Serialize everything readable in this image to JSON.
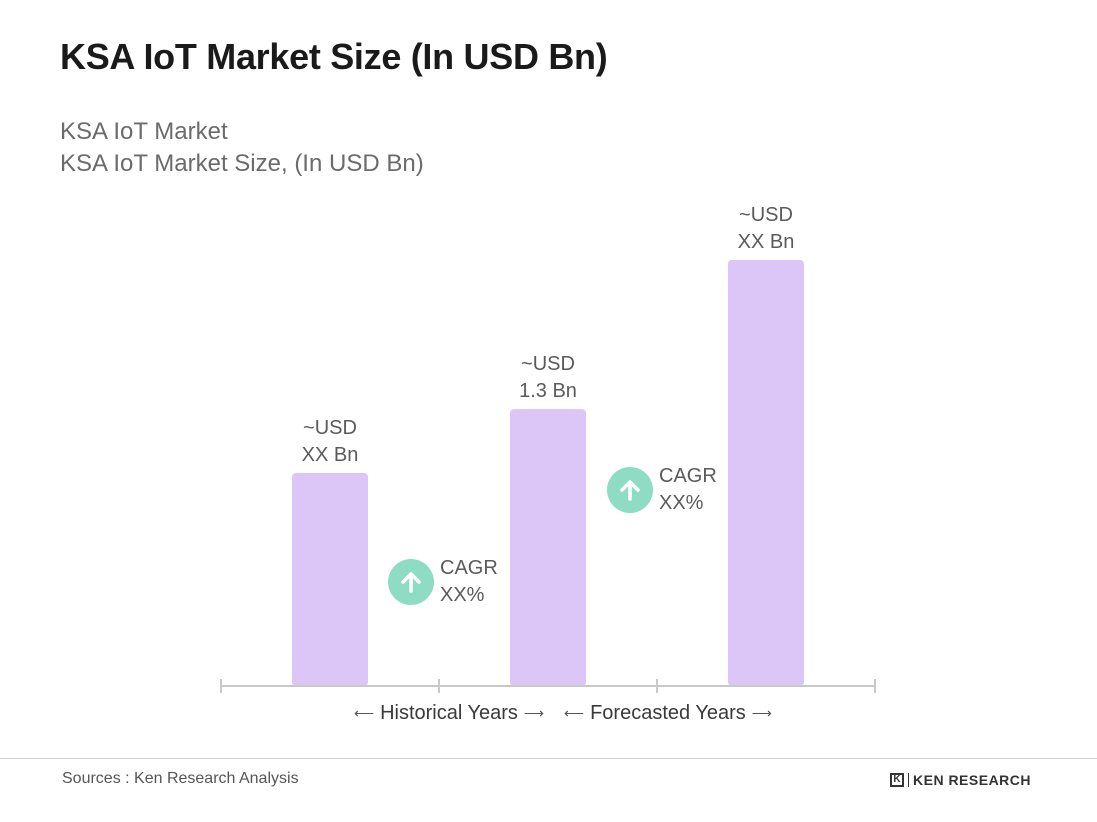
{
  "header": {
    "title": "KSA IoT Market Size (In USD Bn)",
    "subtitle_1": "KSA IoT Market",
    "subtitle_2": "KSA IoT Market Size, (In USD Bn)"
  },
  "chart_data": {
    "type": "bar",
    "title": "KSA IoT Market Size (In USD Bn)",
    "categories": [
      "",
      "",
      ""
    ],
    "values": [
      1.0,
      1.3,
      2.0
    ],
    "bar_labels": [
      [
        "~USD",
        "XX Bn"
      ],
      [
        "~USD",
        "1.3 Bn"
      ],
      [
        "~USD",
        "XX Bn"
      ]
    ],
    "bar_color": "#dcc5f7",
    "ylim": [
      0,
      2.0
    ],
    "grid": false,
    "cagr": [
      {
        "line1": "CAGR",
        "line2": "XX%"
      },
      {
        "line1": "CAGR",
        "line2": "XX%"
      }
    ],
    "periods": {
      "historical": "Historical Years",
      "forecasted": "Forecasted Years"
    },
    "cagr_color": "#8fdcc4",
    "axis_color": "#c8c8c8"
  },
  "footer": {
    "source": "Sources : Ken Research Analysis",
    "brand": "KEN RESEARCH",
    "brand_mark": "K"
  }
}
